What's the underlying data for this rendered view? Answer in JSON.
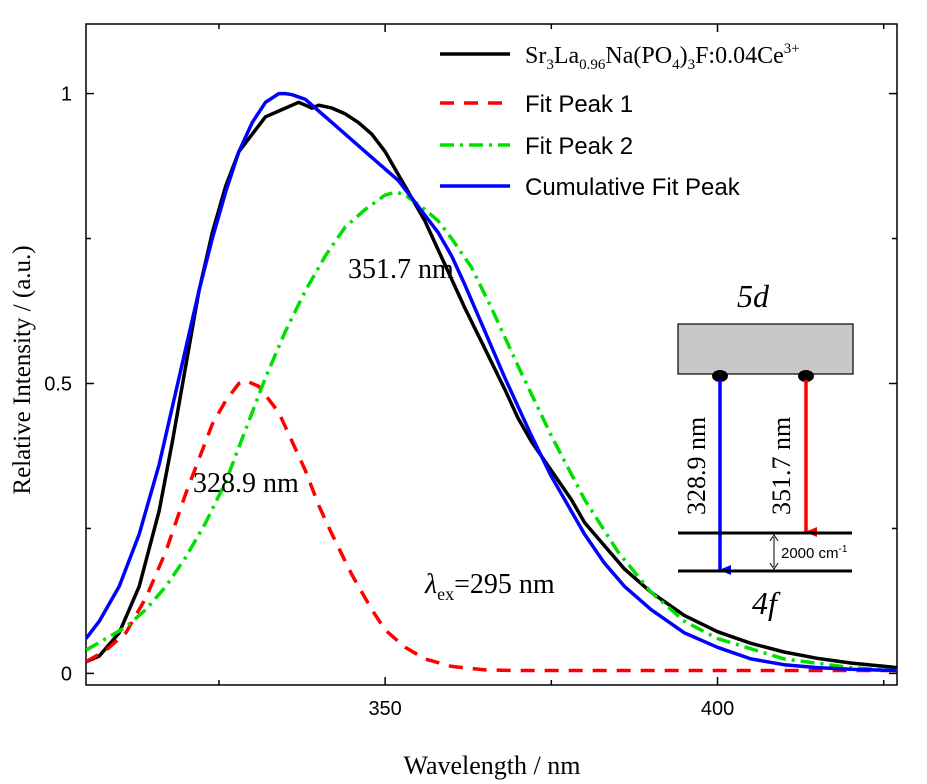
{
  "chart_data": {
    "type": "line",
    "xlabel": "Wavelength / nm",
    "ylabel": "Relative Intensity / (a.u.)",
    "xlim": [
      305,
      427
    ],
    "ylim": [
      -0.02,
      1.12
    ],
    "xticks": [
      350,
      400
    ],
    "yticks": [
      0,
      0.5,
      1
    ],
    "ytick_labels": [
      "0",
      "0.5",
      "1"
    ],
    "legend_position": "top-right",
    "series": [
      {
        "name": "Sr3La0.96Na(PO4)3F:0.04Ce3+",
        "color": "#000000",
        "style": "solid",
        "x": [
          305,
          307,
          310,
          313,
          316,
          318,
          320,
          322,
          324,
          326,
          328,
          330,
          332,
          334,
          335,
          336,
          337,
          338,
          339,
          340,
          342,
          344,
          346,
          348,
          350,
          352,
          354,
          356,
          358,
          360,
          362,
          365,
          368,
          370,
          372,
          375,
          378,
          380,
          383,
          386,
          390,
          395,
          400,
          405,
          410,
          415,
          420,
          427
        ],
        "y": [
          0.02,
          0.03,
          0.07,
          0.15,
          0.28,
          0.4,
          0.53,
          0.66,
          0.76,
          0.84,
          0.9,
          0.93,
          0.96,
          0.97,
          0.975,
          0.98,
          0.985,
          0.98,
          0.975,
          0.98,
          0.975,
          0.965,
          0.95,
          0.93,
          0.9,
          0.86,
          0.82,
          0.78,
          0.73,
          0.68,
          0.63,
          0.56,
          0.49,
          0.44,
          0.4,
          0.35,
          0.3,
          0.26,
          0.22,
          0.18,
          0.14,
          0.1,
          0.072,
          0.052,
          0.037,
          0.026,
          0.018,
          0.01
        ]
      },
      {
        "name": "Fit Peak 1",
        "color": "#ff0000",
        "style": "dashed",
        "x": [
          305,
          308,
          311,
          314,
          317,
          320,
          322,
          324,
          326,
          328,
          329,
          330,
          331,
          332,
          334,
          336,
          338,
          340,
          342,
          345,
          348,
          350,
          353,
          356,
          360,
          365,
          370,
          380,
          390,
          400,
          410,
          420,
          427
        ],
        "y": [
          0.02,
          0.04,
          0.07,
          0.13,
          0.21,
          0.31,
          0.37,
          0.43,
          0.47,
          0.5,
          0.505,
          0.5,
          0.495,
          0.48,
          0.45,
          0.4,
          0.35,
          0.29,
          0.24,
          0.17,
          0.11,
          0.075,
          0.045,
          0.025,
          0.012,
          0.006,
          0.005,
          0.005,
          0.005,
          0.005,
          0.005,
          0.005,
          0.005
        ]
      },
      {
        "name": "Fit Peak 2",
        "color": "#00e000",
        "style": "dashdot",
        "x": [
          305,
          308,
          311,
          314,
          317,
          320,
          323,
          326,
          329,
          332,
          335,
          338,
          341,
          344,
          347,
          350,
          351.7,
          353,
          356,
          358,
          360,
          363,
          366,
          370,
          375,
          380,
          385,
          390,
          395,
          400,
          410,
          420,
          427
        ],
        "y": [
          0.04,
          0.06,
          0.08,
          0.11,
          0.15,
          0.2,
          0.26,
          0.33,
          0.42,
          0.51,
          0.59,
          0.66,
          0.72,
          0.77,
          0.8,
          0.825,
          0.83,
          0.825,
          0.8,
          0.78,
          0.75,
          0.7,
          0.63,
          0.53,
          0.41,
          0.3,
          0.21,
          0.14,
          0.09,
          0.06,
          0.025,
          0.01,
          0.005
        ]
      },
      {
        "name": "Cumulative Fit Peak",
        "color": "#0000ff",
        "style": "solid",
        "x": [
          305,
          307,
          310,
          313,
          316,
          318,
          320,
          322,
          324,
          326,
          328,
          330,
          332,
          334,
          335,
          336,
          338,
          340,
          342,
          344,
          346,
          348,
          350,
          352,
          354,
          356,
          358,
          360,
          362,
          365,
          368,
          370,
          372,
          375,
          378,
          380,
          383,
          386,
          390,
          395,
          400,
          405,
          410,
          415,
          420,
          427
        ],
        "y": [
          0.06,
          0.09,
          0.15,
          0.24,
          0.36,
          0.46,
          0.56,
          0.66,
          0.75,
          0.83,
          0.9,
          0.95,
          0.985,
          1.0,
          1.0,
          0.998,
          0.99,
          0.97,
          0.95,
          0.93,
          0.91,
          0.89,
          0.87,
          0.85,
          0.82,
          0.79,
          0.76,
          0.72,
          0.67,
          0.59,
          0.51,
          0.46,
          0.41,
          0.34,
          0.28,
          0.24,
          0.19,
          0.15,
          0.11,
          0.07,
          0.045,
          0.025,
          0.015,
          0.01,
          0.007,
          0.005
        ]
      }
    ],
    "annotations": {
      "peak1_label": "328.9 nm",
      "peak2_label": "351.7 nm",
      "lambda_symbol": "λ",
      "lambda_sub": "ex",
      "excitation_text": "=295 nm"
    },
    "legend_label_parts": {
      "sample": [
        "Sr",
        "3",
        "La",
        "0.96",
        "Na(PO",
        "4",
        ")",
        "3",
        "F:0.04Ce",
        "3+"
      ]
    },
    "inset": {
      "upper_level": "5d",
      "lower_level": "4f",
      "arrow1_label": "328.9 nm",
      "arrow2_label": "351.7 nm",
      "splitting_value": "2000 cm",
      "splitting_exp": "-1",
      "level_fill": "#c8c8c8",
      "arrow1_color": "#0000ff",
      "arrow2_color": "#ff0000"
    }
  }
}
